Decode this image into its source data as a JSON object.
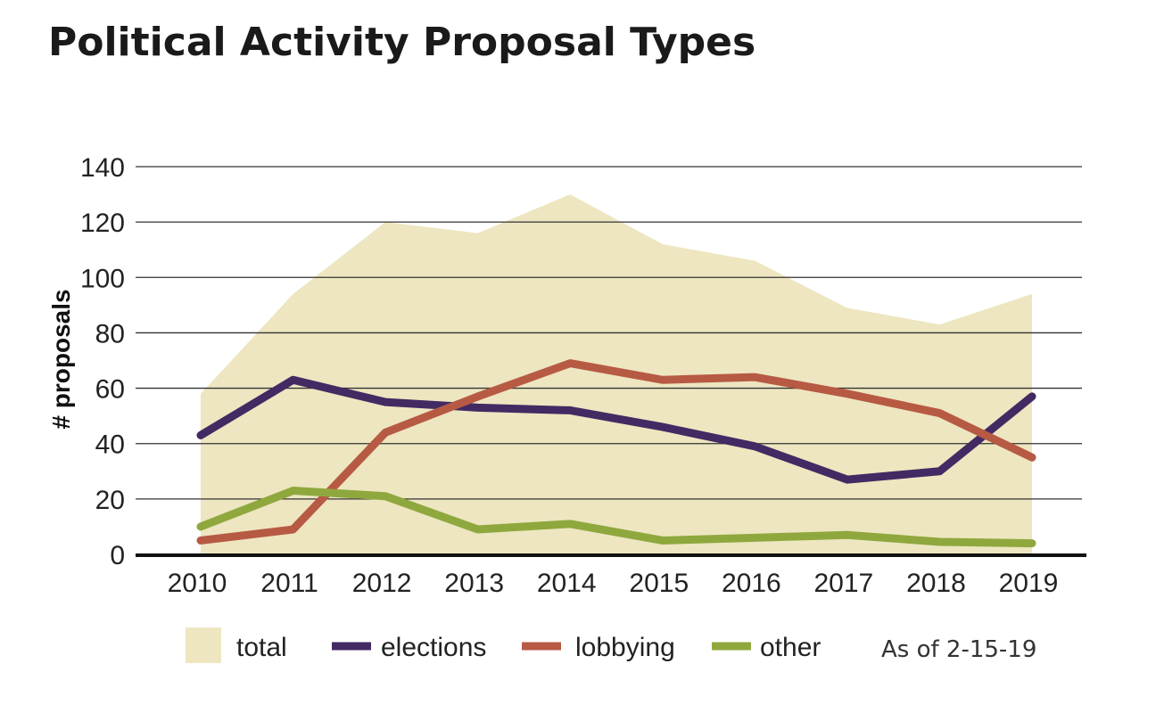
{
  "chart_data": {
    "type": "line",
    "title": "Political Activity Proposal Types",
    "ylabel": "# proposals",
    "xlabel": "",
    "ylim": [
      0,
      140
    ],
    "yticks": [
      0,
      20,
      40,
      60,
      80,
      100,
      120,
      140
    ],
    "grid": true,
    "categories": [
      "2010",
      "2011",
      "2012",
      "2013",
      "2014",
      "2015",
      "2016",
      "2017",
      "2018",
      "2019"
    ],
    "series": [
      {
        "name": "total",
        "kind": "area",
        "color": "#ede6c0",
        "values": [
          58,
          94,
          120,
          116,
          130,
          112,
          106,
          89,
          83,
          94
        ]
      },
      {
        "name": "elections",
        "kind": "line",
        "color": "#432a63",
        "values": [
          43,
          63,
          55,
          53,
          52,
          46,
          39,
          27,
          30,
          57
        ]
      },
      {
        "name": "lobbying",
        "kind": "line",
        "color": "#b75a44",
        "values": [
          5,
          9,
          44,
          57,
          69,
          63,
          64,
          58,
          51,
          35
        ]
      },
      {
        "name": "other",
        "kind": "line",
        "color": "#8fa83e",
        "values": [
          10,
          23,
          21,
          9,
          11,
          5,
          6,
          7,
          4.5,
          4
        ]
      }
    ],
    "legend_position": "bottom",
    "note": "As of 2-15-19"
  }
}
